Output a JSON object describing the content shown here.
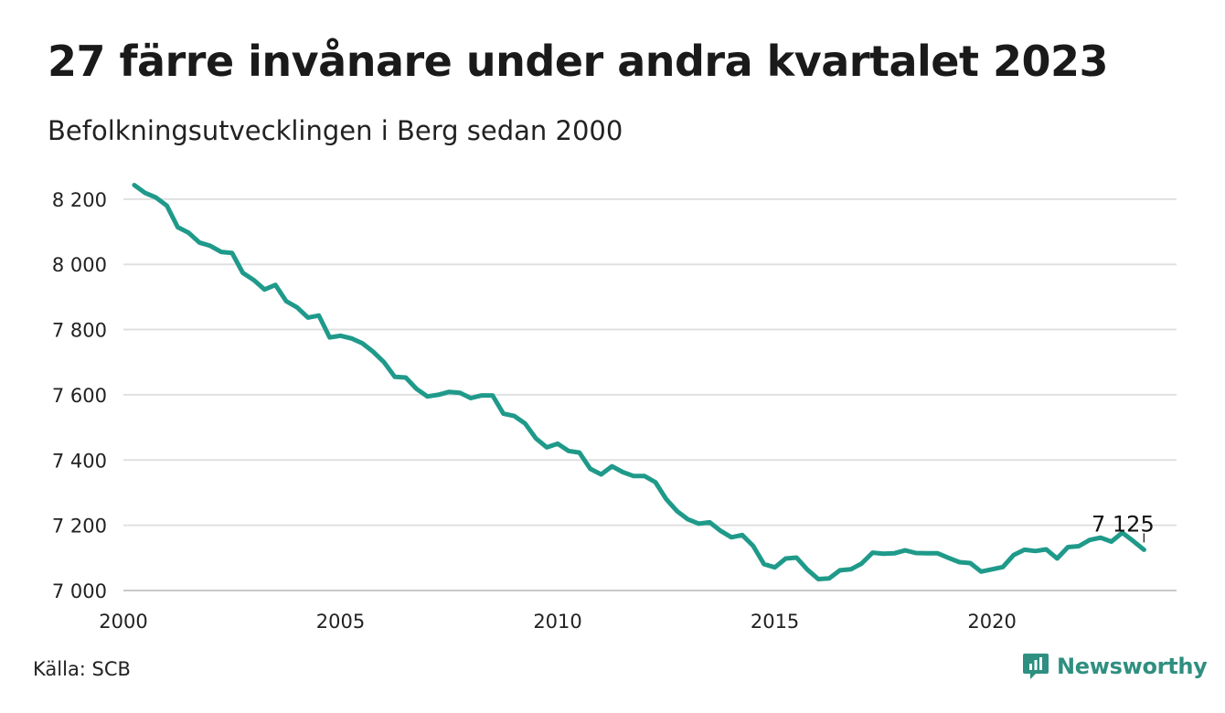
{
  "title": "27 färre invånare under andra kvartalet 2023",
  "subtitle": "Befolkningsutvecklingen i Berg sedan 2000",
  "source": "Källa: SCB",
  "brand": {
    "name": "Newsworthy",
    "icon": "newsworthy-logo-icon",
    "color": "#2f8f80"
  },
  "chart_data": {
    "type": "line",
    "line_color": "#1f9a8a",
    "grid": true,
    "xlim": [
      2000,
      2024.25
    ],
    "ylim": [
      7000,
      8250
    ],
    "x_ticks": [
      2000,
      2005,
      2010,
      2015,
      2020
    ],
    "x_tick_labels": [
      "2000",
      "2005",
      "2010",
      "2015",
      "2020"
    ],
    "y_ticks": [
      7000,
      7200,
      7400,
      7600,
      7800,
      8000,
      8200
    ],
    "y_tick_labels": [
      "7 000",
      "7 200",
      "7 400",
      "7 600",
      "7 800",
      "8 000",
      "8 200"
    ],
    "end_label": "7 125",
    "series": [
      {
        "x_start": 2000.25,
        "x_step": 0.25,
        "values": [
          8243,
          8219,
          8205,
          8180,
          8114,
          8097,
          8067,
          8057,
          8038,
          8035,
          7974,
          7952,
          7923,
          7937,
          7887,
          7868,
          7837,
          7843,
          7776,
          7781,
          7773,
          7758,
          7732,
          7700,
          7655,
          7653,
          7618,
          7595,
          7600,
          7609,
          7606,
          7590,
          7598,
          7598,
          7542,
          7535,
          7512,
          7466,
          7439,
          7450,
          7428,
          7423,
          7373,
          7356,
          7381,
          7363,
          7351,
          7351,
          7332,
          7280,
          7243,
          7218,
          7205,
          7209,
          7183,
          7163,
          7170,
          7137,
          7081,
          7071,
          7098,
          7101,
          7064,
          7035,
          7037,
          7062,
          7065,
          7083,
          7116,
          7113,
          7114,
          7123,
          7115,
          7114,
          7114,
          7100,
          7087,
          7084,
          7058,
          7065,
          7072,
          7109,
          7125,
          7121,
          7126,
          7098,
          7133,
          7136,
          7155,
          7162,
          7150,
          7177,
          7152,
          7125
        ]
      }
    ]
  }
}
